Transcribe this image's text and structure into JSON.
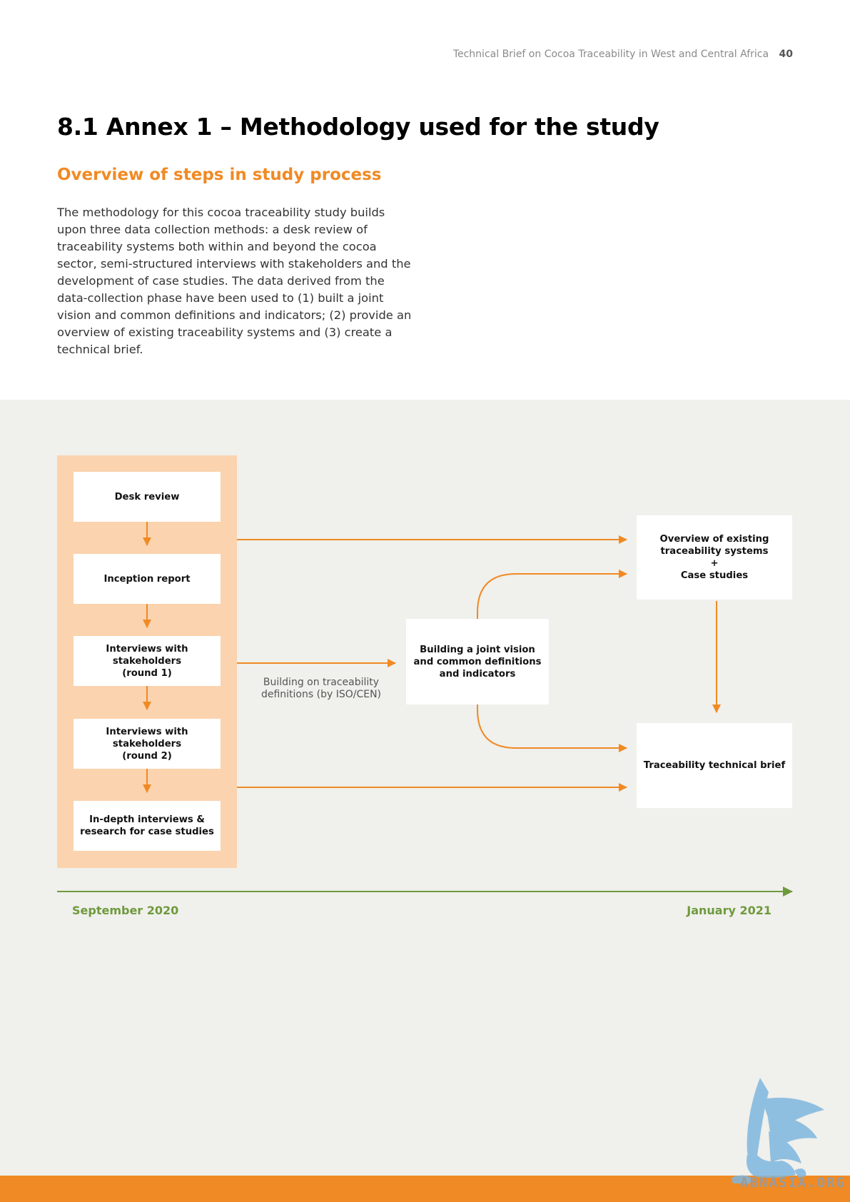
{
  "header": {
    "running_title": "Technical Brief on Cocoa Traceability in West and Central Africa",
    "page_number": "40"
  },
  "section": {
    "title": "8.1  Annex 1 – Methodology used for the study",
    "subtitle": "Overview of steps in study process",
    "intro": "The methodology for this cocoa traceability study builds upon three data collection methods: a desk review of traceability systems both within and beyond the cocoa sector, semi-structured interviews with stakeholders and the development of case studies. The data derived from the data-collection phase have been used to (1) built a joint vision and common definitions and indicators; (2) provide an overview of existing traceability systems and (3) create a technical brief."
  },
  "diagram": {
    "steps": [
      "Desk review",
      "Inception report",
      "Interviews with\nstakeholders\n(round 1)",
      "Interviews with\nstakeholders\n(round 2)",
      "In-depth interviews &\nresearch for case studies"
    ],
    "middle_box": "Building a joint vision\nand common definitions\nand indicators",
    "middle_note": "Building on traceability\ndefinitions (by ISO/CEN)",
    "output_top": "Overview of existing\ntraceability systems\n+\nCase studies",
    "output_bottom": "Traceability technical brief",
    "timeline": {
      "start": "September 2020",
      "end": "January 2021"
    },
    "colors": {
      "arrow": "#f08a24",
      "column": "#fbd3ae",
      "timeline": "#6e9a3c",
      "panel": "#f0f0ec"
    }
  },
  "watermark": {
    "text": "ABNASIA.ORG",
    "icon": "griffin-logo-icon"
  }
}
